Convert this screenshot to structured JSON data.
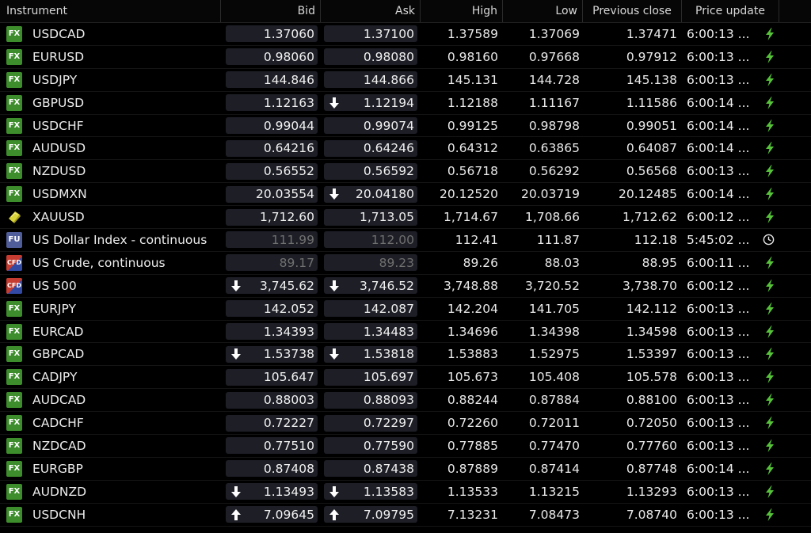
{
  "headers": {
    "instrument": "Instrument",
    "bid": "Bid",
    "ask": "Ask",
    "high": "High",
    "low": "Low",
    "prev_close": "Previous close",
    "price_update": "Price update"
  },
  "rows": [
    {
      "badge": "fx",
      "badge_text": "FX",
      "name": "USDCAD",
      "bid": "1.37060",
      "bid_arrow": "",
      "ask": "1.37100",
      "ask_arrow": "",
      "high": "1.37589",
      "low": "1.37069",
      "prev": "1.37471",
      "time": "6:00:13 ...",
      "status": "bolt",
      "muted": false
    },
    {
      "badge": "fx",
      "badge_text": "FX",
      "name": "EURUSD",
      "bid": "0.98060",
      "bid_arrow": "",
      "ask": "0.98080",
      "ask_arrow": "",
      "high": "0.98160",
      "low": "0.97668",
      "prev": "0.97912",
      "time": "6:00:13 ...",
      "status": "bolt",
      "muted": false
    },
    {
      "badge": "fx",
      "badge_text": "FX",
      "name": "USDJPY",
      "bid": "144.846",
      "bid_arrow": "",
      "ask": "144.866",
      "ask_arrow": "",
      "high": "145.131",
      "low": "144.728",
      "prev": "145.138",
      "time": "6:00:13 ...",
      "status": "bolt",
      "muted": false
    },
    {
      "badge": "fx",
      "badge_text": "FX",
      "name": "GBPUSD",
      "bid": "1.12163",
      "bid_arrow": "",
      "ask": "1.12194",
      "ask_arrow": "down",
      "high": "1.12188",
      "low": "1.11167",
      "prev": "1.11586",
      "time": "6:00:14 ...",
      "status": "bolt",
      "muted": false
    },
    {
      "badge": "fx",
      "badge_text": "FX",
      "name": "USDCHF",
      "bid": "0.99044",
      "bid_arrow": "",
      "ask": "0.99074",
      "ask_arrow": "",
      "high": "0.99125",
      "low": "0.98798",
      "prev": "0.99051",
      "time": "6:00:14 ...",
      "status": "bolt",
      "muted": false
    },
    {
      "badge": "fx",
      "badge_text": "FX",
      "name": "AUDUSD",
      "bid": "0.64216",
      "bid_arrow": "",
      "ask": "0.64246",
      "ask_arrow": "",
      "high": "0.64312",
      "low": "0.63865",
      "prev": "0.64087",
      "time": "6:00:14 ...",
      "status": "bolt",
      "muted": false
    },
    {
      "badge": "fx",
      "badge_text": "FX",
      "name": "NZDUSD",
      "bid": "0.56552",
      "bid_arrow": "",
      "ask": "0.56592",
      "ask_arrow": "",
      "high": "0.56718",
      "low": "0.56292",
      "prev": "0.56568",
      "time": "6:00:13 ...",
      "status": "bolt",
      "muted": false
    },
    {
      "badge": "fx",
      "badge_text": "FX",
      "name": "USDMXN",
      "bid": "20.03554",
      "bid_arrow": "",
      "ask": "20.04180",
      "ask_arrow": "down",
      "high": "20.12520",
      "low": "20.03719",
      "prev": "20.12485",
      "time": "6:00:14 ...",
      "status": "bolt",
      "muted": false
    },
    {
      "badge": "gold",
      "badge_text": "",
      "name": "XAUUSD",
      "bid": "1,712.60",
      "bid_arrow": "",
      "ask": "1,713.05",
      "ask_arrow": "",
      "high": "1,714.67",
      "low": "1,708.66",
      "prev": "1,712.62",
      "time": "6:00:12 ...",
      "status": "bolt",
      "muted": false
    },
    {
      "badge": "fu",
      "badge_text": "FU",
      "name": "US Dollar Index - continuous",
      "bid": "111.99",
      "bid_arrow": "",
      "ask": "112.00",
      "ask_arrow": "",
      "high": "112.41",
      "low": "111.87",
      "prev": "112.18",
      "time": "5:45:02 ...",
      "status": "clock",
      "muted": true
    },
    {
      "badge": "cfd",
      "badge_text": "CFD",
      "name": "US Crude, continuous",
      "bid": "89.17",
      "bid_arrow": "",
      "ask": "89.23",
      "ask_arrow": "",
      "high": "89.26",
      "low": "88.03",
      "prev": "88.95",
      "time": "6:00:11 ...",
      "status": "bolt",
      "muted": true
    },
    {
      "badge": "cfd",
      "badge_text": "CFD",
      "name": "US 500",
      "bid": "3,745.62",
      "bid_arrow": "down",
      "ask": "3,746.52",
      "ask_arrow": "down",
      "high": "3,748.88",
      "low": "3,720.52",
      "prev": "3,738.70",
      "time": "6:00:12 ...",
      "status": "bolt",
      "muted": false
    },
    {
      "badge": "fx",
      "badge_text": "FX",
      "name": "EURJPY",
      "bid": "142.052",
      "bid_arrow": "",
      "ask": "142.087",
      "ask_arrow": "",
      "high": "142.204",
      "low": "141.705",
      "prev": "142.112",
      "time": "6:00:13 ...",
      "status": "bolt",
      "muted": false
    },
    {
      "badge": "fx",
      "badge_text": "FX",
      "name": "EURCAD",
      "bid": "1.34393",
      "bid_arrow": "",
      "ask": "1.34483",
      "ask_arrow": "",
      "high": "1.34696",
      "low": "1.34398",
      "prev": "1.34598",
      "time": "6:00:13 ...",
      "status": "bolt",
      "muted": false
    },
    {
      "badge": "fx",
      "badge_text": "FX",
      "name": "GBPCAD",
      "bid": "1.53738",
      "bid_arrow": "down",
      "ask": "1.53818",
      "ask_arrow": "down",
      "high": "1.53883",
      "low": "1.52975",
      "prev": "1.53397",
      "time": "6:00:13 ...",
      "status": "bolt",
      "muted": false
    },
    {
      "badge": "fx",
      "badge_text": "FX",
      "name": "CADJPY",
      "bid": "105.647",
      "bid_arrow": "",
      "ask": "105.697",
      "ask_arrow": "",
      "high": "105.673",
      "low": "105.408",
      "prev": "105.578",
      "time": "6:00:13 ...",
      "status": "bolt",
      "muted": false
    },
    {
      "badge": "fx",
      "badge_text": "FX",
      "name": "AUDCAD",
      "bid": "0.88003",
      "bid_arrow": "",
      "ask": "0.88093",
      "ask_arrow": "",
      "high": "0.88244",
      "low": "0.87884",
      "prev": "0.88100",
      "time": "6:00:13 ...",
      "status": "bolt",
      "muted": false
    },
    {
      "badge": "fx",
      "badge_text": "FX",
      "name": "CADCHF",
      "bid": "0.72227",
      "bid_arrow": "",
      "ask": "0.72297",
      "ask_arrow": "",
      "high": "0.72260",
      "low": "0.72011",
      "prev": "0.72050",
      "time": "6:00:13 ...",
      "status": "bolt",
      "muted": false
    },
    {
      "badge": "fx",
      "badge_text": "FX",
      "name": "NZDCAD",
      "bid": "0.77510",
      "bid_arrow": "",
      "ask": "0.77590",
      "ask_arrow": "",
      "high": "0.77885",
      "low": "0.77470",
      "prev": "0.77760",
      "time": "6:00:13 ...",
      "status": "bolt",
      "muted": false
    },
    {
      "badge": "fx",
      "badge_text": "FX",
      "name": "EURGBP",
      "bid": "0.87408",
      "bid_arrow": "",
      "ask": "0.87438",
      "ask_arrow": "",
      "high": "0.87889",
      "low": "0.87414",
      "prev": "0.87748",
      "time": "6:00:14 ...",
      "status": "bolt",
      "muted": false
    },
    {
      "badge": "fx",
      "badge_text": "FX",
      "name": "AUDNZD",
      "bid": "1.13493",
      "bid_arrow": "down",
      "ask": "1.13583",
      "ask_arrow": "down",
      "high": "1.13533",
      "low": "1.13215",
      "prev": "1.13293",
      "time": "6:00:13 ...",
      "status": "bolt",
      "muted": false
    },
    {
      "badge": "fx",
      "badge_text": "FX",
      "name": "USDCNH",
      "bid": "7.09645",
      "bid_arrow": "up",
      "ask": "7.09795",
      "ask_arrow": "up",
      "high": "7.13231",
      "low": "7.08473",
      "prev": "7.08740",
      "time": "6:00:13 ...",
      "status": "bolt",
      "muted": false
    }
  ],
  "colors": {
    "bolt": "#56c23a",
    "fx_badge": "#3d8d2c",
    "pill_bg": "#1d1e26",
    "background": "#000000"
  }
}
